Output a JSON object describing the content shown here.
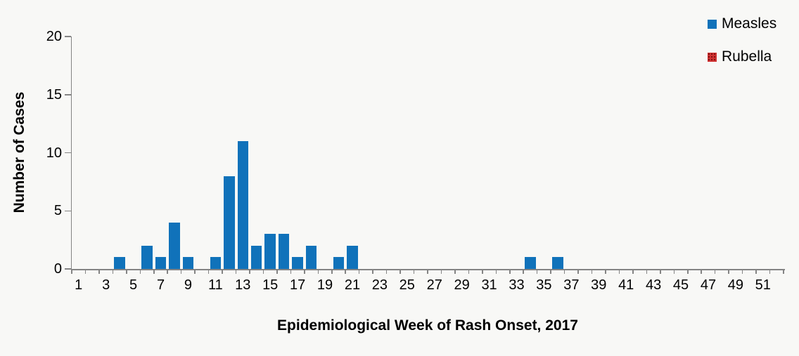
{
  "chart_data": {
    "type": "bar",
    "title": "",
    "xlabel": "Epidemiological Week of Rash Onset, 2017",
    "ylabel": "Number of Cases",
    "categories": [
      1,
      2,
      3,
      4,
      5,
      6,
      7,
      8,
      9,
      10,
      11,
      12,
      13,
      14,
      15,
      16,
      17,
      18,
      19,
      20,
      21,
      22,
      23,
      24,
      25,
      26,
      27,
      28,
      29,
      30,
      31,
      32,
      33,
      34,
      35,
      36,
      37,
      38,
      39,
      40,
      41,
      42,
      43,
      44,
      45,
      46,
      47,
      48,
      49,
      50,
      51,
      52
    ],
    "x_tick_labels": [
      "1",
      "3",
      "5",
      "7",
      "9",
      "11",
      "13",
      "15",
      "17",
      "19",
      "21",
      "23",
      "25",
      "27",
      "29",
      "31",
      "33",
      "35",
      "37",
      "39",
      "41",
      "43",
      "45",
      "47",
      "49",
      "51"
    ],
    "series": [
      {
        "name": "Measles",
        "color": "#1072ba",
        "pattern": "solid",
        "values": [
          0,
          0,
          0,
          1,
          0,
          2,
          1,
          4,
          1,
          0,
          1,
          8,
          11,
          2,
          3,
          3,
          1,
          2,
          0,
          1,
          2,
          0,
          0,
          0,
          0,
          0,
          0,
          0,
          0,
          0,
          0,
          0,
          0,
          1,
          0,
          1,
          0,
          0,
          0,
          0,
          0,
          0,
          0,
          0,
          0,
          0,
          0,
          0,
          0,
          0,
          0,
          0
        ]
      },
      {
        "name": "Rubella",
        "color": "#c00000",
        "pattern": "dotted",
        "values": [
          0,
          0,
          0,
          0,
          0,
          0,
          0,
          0,
          0,
          0,
          0,
          0,
          0,
          0,
          0,
          0,
          0,
          0,
          0,
          0,
          0,
          0,
          0,
          0,
          0,
          0,
          0,
          0,
          0,
          0,
          0,
          0,
          0,
          0,
          0,
          0,
          0,
          0,
          0,
          0,
          0,
          0,
          0,
          0,
          0,
          0,
          0,
          0,
          0,
          0,
          0,
          0
        ]
      }
    ],
    "y_ticks": [
      0,
      5,
      10,
      15,
      20
    ],
    "ylim": [
      0,
      20
    ],
    "grid": false,
    "legend_position": "top-right"
  },
  "legend": {
    "measles_label": "Measles",
    "rubella_label": "Rubella"
  },
  "colors": {
    "background": "#f8f8f6",
    "axis": "#848484",
    "measles": "#1072ba",
    "rubella": "#c00000",
    "text": "#000000"
  }
}
